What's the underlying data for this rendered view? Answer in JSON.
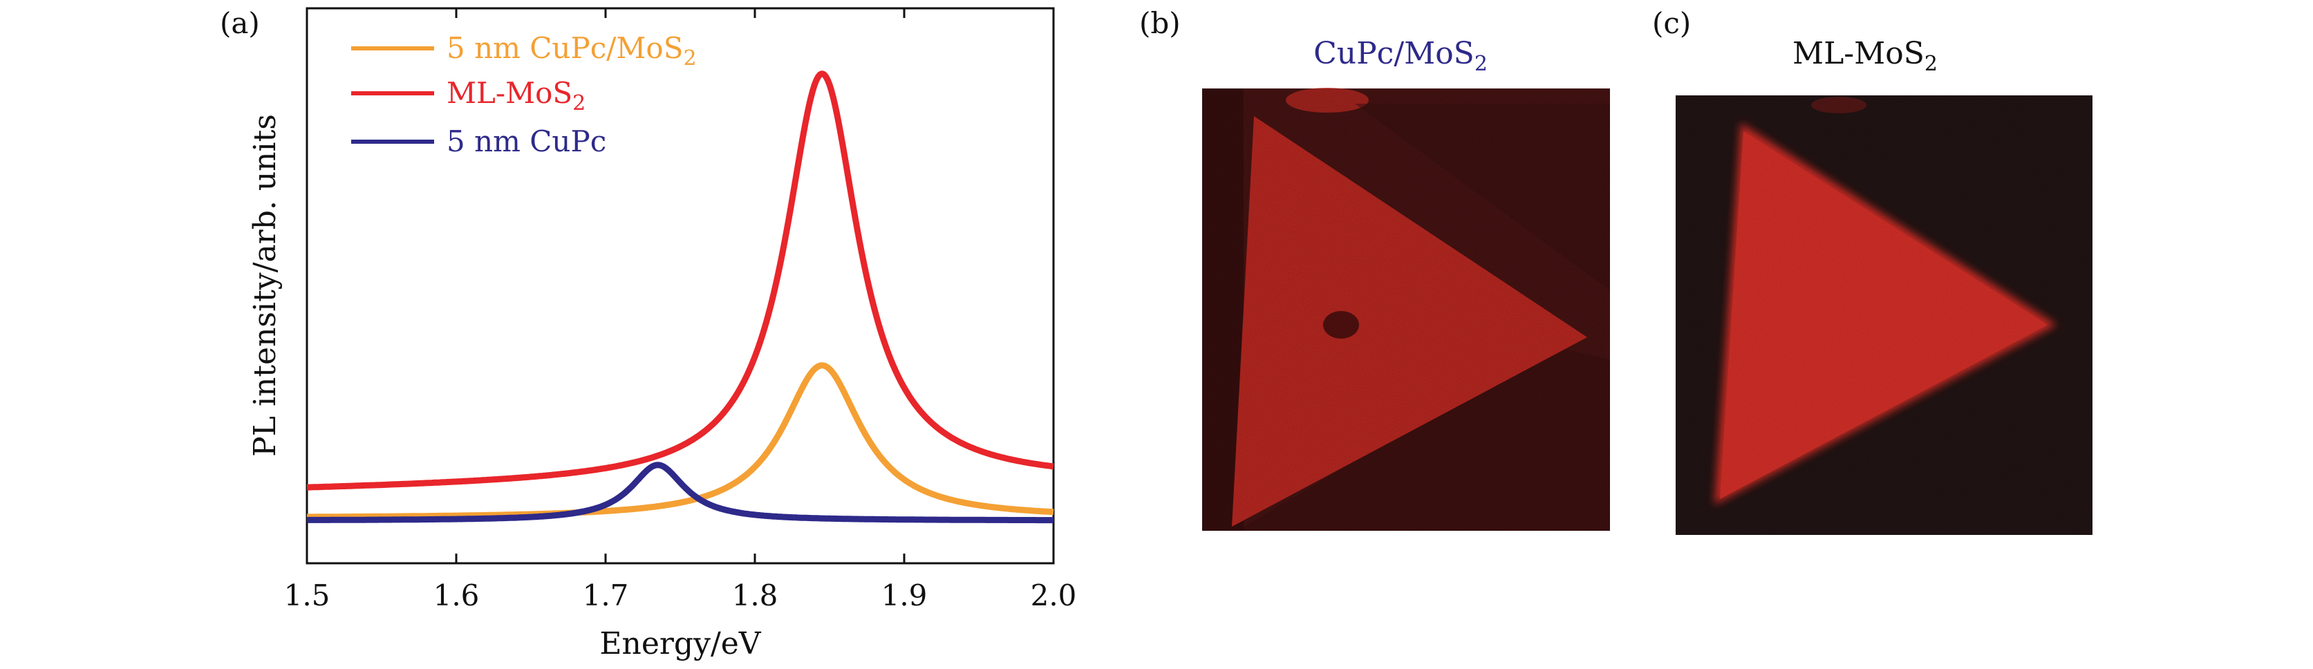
{
  "panels": {
    "a": {
      "label": "(a)",
      "chart_data": {
        "type": "line",
        "xlabel": "Energy/eV",
        "ylabel": "PL intensity/arb. units",
        "xlim": [
          1.5,
          2.0
        ],
        "ylim": [
          0,
          1
        ],
        "x_ticks": [
          "1.5",
          "1.6",
          "1.7",
          "1.8",
          "1.9",
          "2.0"
        ],
        "x_tick_values": [
          1.5,
          1.6,
          1.7,
          1.8,
          1.9,
          2.0
        ],
        "y_ticks_labeled": false,
        "legend_position": "top-left",
        "series": [
          {
            "name": "5 nm CuPc/MoS",
            "name_subscript": "2",
            "color": "#f4a034",
            "model": {
              "baseline": 0.06,
              "peaks": [
                {
                  "center": 1.845,
                  "amplitude": 0.33,
                  "width": 0.032
                }
              ]
            }
          },
          {
            "name": "ML-MoS",
            "name_subscript": "2",
            "color": "#e8262b",
            "model": {
              "baseline": 0.12,
              "linear_rise_to": 0.14,
              "peaks": [
                {
                  "center": 1.845,
                  "amplitude": 0.88,
                  "width": 0.03
                }
              ]
            }
          },
          {
            "name": "5 nm CuPc",
            "name_subscript": "",
            "color": "#2e2a8a",
            "model": {
              "baseline": 0.055,
              "peaks": [
                {
                  "center": 1.735,
                  "amplitude": 0.12,
                  "width": 0.022
                }
              ]
            }
          }
        ]
      }
    },
    "b": {
      "label": "(b)",
      "title": "CuPc/MoS",
      "title_subscript": "2",
      "title_color": "#2e2a8a",
      "image_colors": {
        "background": "#4a1212",
        "triangle": "#c52a23"
      }
    },
    "c": {
      "label": "(c)",
      "title": "ML-MoS",
      "title_subscript": "2",
      "title_color": "#111111",
      "image_colors": {
        "background": "#211313",
        "triangle": "#d52f28"
      }
    }
  }
}
